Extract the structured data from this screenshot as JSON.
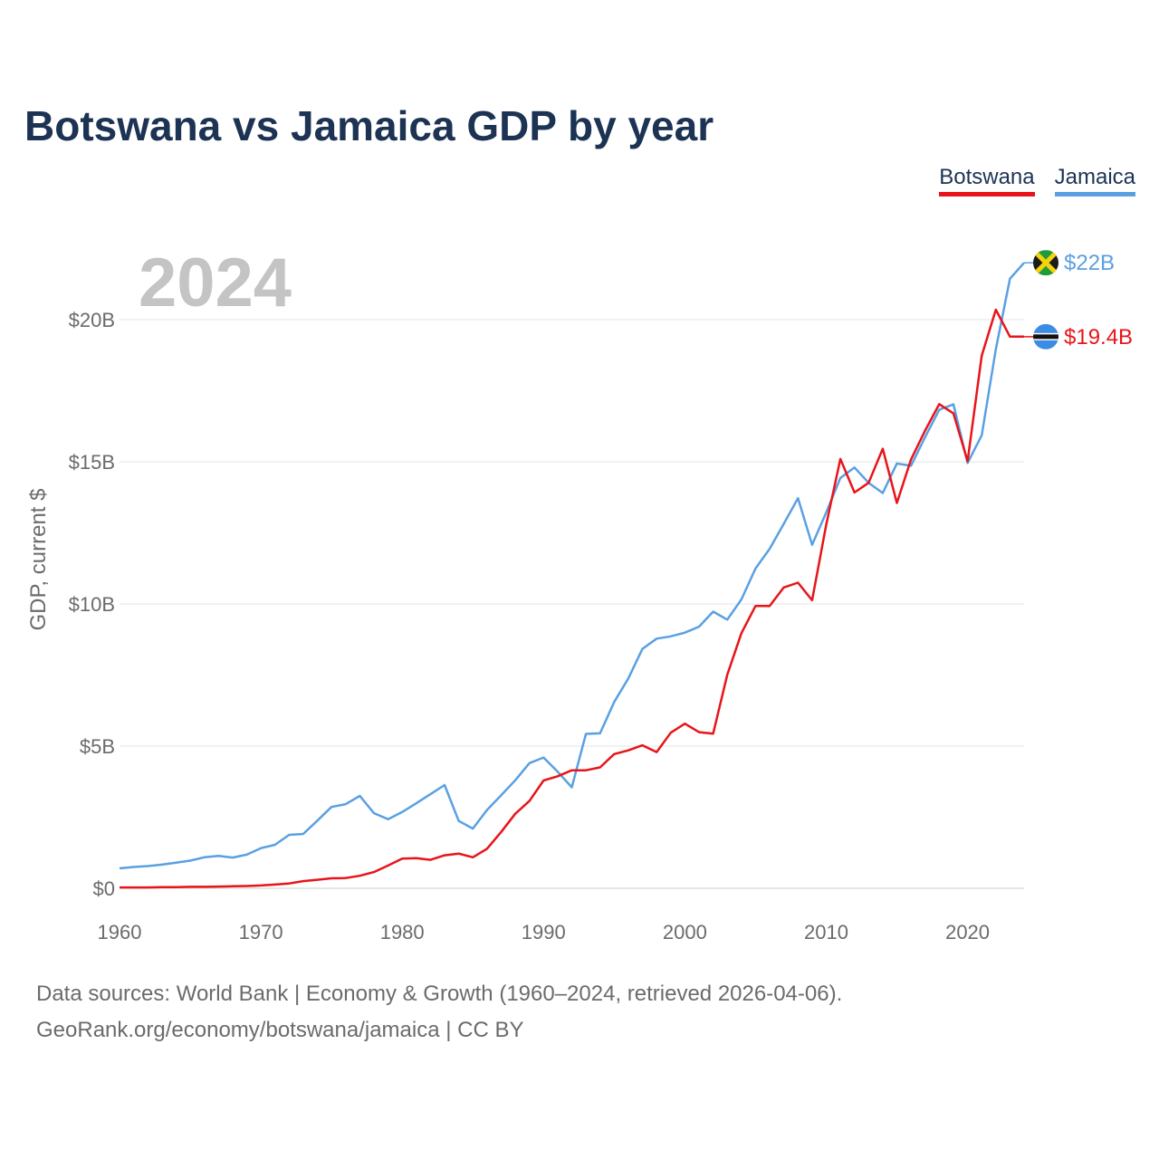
{
  "title": "Botswana vs Jamaica GDP by year",
  "legend": {
    "botswana": "Botswana",
    "jamaica": "Jamaica"
  },
  "year_watermark": "2024",
  "sources": {
    "line1": "Data sources: World Bank | Economy & Growth (1960–2024, retrieved 2026-04-06).",
    "line2": "GeoRank.org/economy/botswana/jamaica | CC BY"
  },
  "chart_data": {
    "type": "line",
    "title": "Botswana vs Jamaica GDP by year",
    "xlabel": "",
    "ylabel": "GDP, current $",
    "xlim": [
      1960,
      2024
    ],
    "ylim": [
      0,
      20
    ],
    "y_unit": "billions USD",
    "x_ticks": [
      1960,
      1970,
      1980,
      1990,
      2000,
      2010,
      2020
    ],
    "x_tick_labels": [
      "1960",
      "1970",
      "1980",
      "1990",
      "2000",
      "2010",
      "2020"
    ],
    "y_ticks": [
      0,
      5,
      10,
      15,
      20
    ],
    "y_tick_labels": [
      "$0",
      "$5B",
      "$10B",
      "$15B",
      "$20B"
    ],
    "grid": true,
    "legend_position": "top-right",
    "x": [
      1960,
      1961,
      1962,
      1963,
      1964,
      1965,
      1966,
      1967,
      1968,
      1969,
      1970,
      1971,
      1972,
      1973,
      1974,
      1975,
      1976,
      1977,
      1978,
      1979,
      1980,
      1981,
      1982,
      1983,
      1984,
      1985,
      1986,
      1987,
      1988,
      1989,
      1990,
      1991,
      1992,
      1993,
      1994,
      1995,
      1996,
      1997,
      1998,
      1999,
      2000,
      2001,
      2002,
      2003,
      2004,
      2005,
      2006,
      2007,
      2008,
      2009,
      2010,
      2011,
      2012,
      2013,
      2014,
      2015,
      2016,
      2017,
      2018,
      2019,
      2020,
      2021,
      2022,
      2023,
      2024
    ],
    "series": [
      {
        "name": "Botswana",
        "color": "#e8141a",
        "end_label": "$19.4B",
        "values": [
          0.03,
          0.03,
          0.03,
          0.04,
          0.04,
          0.05,
          0.05,
          0.06,
          0.07,
          0.08,
          0.1,
          0.13,
          0.17,
          0.25,
          0.3,
          0.35,
          0.36,
          0.44,
          0.57,
          0.8,
          1.04,
          1.06,
          1.0,
          1.16,
          1.22,
          1.09,
          1.39,
          1.98,
          2.62,
          3.07,
          3.79,
          3.94,
          4.15,
          4.15,
          4.25,
          4.72,
          4.85,
          5.03,
          4.79,
          5.47,
          5.79,
          5.49,
          5.44,
          7.51,
          8.97,
          9.93,
          9.93,
          10.58,
          10.75,
          10.13,
          12.79,
          15.1,
          13.92,
          14.26,
          15.46,
          13.55,
          15.08,
          16.1,
          17.03,
          16.7,
          15.02,
          18.73,
          20.35,
          19.4,
          19.4
        ]
      },
      {
        "name": "Jamaica",
        "color": "#5aa0e2",
        "end_label": "$22B",
        "values": [
          0.7,
          0.75,
          0.78,
          0.83,
          0.9,
          0.97,
          1.09,
          1.14,
          1.08,
          1.18,
          1.41,
          1.53,
          1.88,
          1.91,
          2.38,
          2.86,
          2.96,
          3.25,
          2.64,
          2.43,
          2.68,
          2.99,
          3.31,
          3.63,
          2.37,
          2.1,
          2.75,
          3.27,
          3.8,
          4.4,
          4.6,
          4.1,
          3.55,
          5.43,
          5.45,
          6.55,
          7.38,
          8.42,
          8.78,
          8.86,
          8.99,
          9.2,
          9.73,
          9.45,
          10.16,
          11.25,
          11.94,
          12.82,
          13.72,
          12.08,
          13.22,
          14.43,
          14.8,
          14.26,
          13.9,
          14.94,
          14.86,
          15.87,
          16.83,
          17.02,
          14.96,
          15.93,
          18.96,
          21.44,
          22.0
        ]
      }
    ]
  }
}
